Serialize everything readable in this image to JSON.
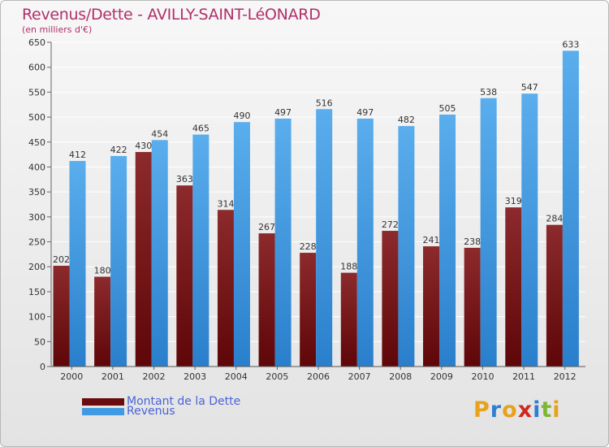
{
  "title": "Revenus/Dette - AVILLY-SAINT-LéONARD",
  "subtitle": "(en milliers d'€)",
  "legend": {
    "items": [
      {
        "label": "Montant de la Dette",
        "color": "#7a1416"
      },
      {
        "label": "Revenus",
        "color": "#3f9ae3"
      }
    ]
  },
  "logo": {
    "letters": [
      "P",
      "r",
      "o",
      "x",
      "i",
      "t",
      "i"
    ],
    "colors": [
      "#e8a21a",
      "#2f7fd0",
      "#e8a21a",
      "#d0271d",
      "#2f7fd0",
      "#7db832",
      "#e8a21a"
    ]
  },
  "chart_data": {
    "type": "bar",
    "categories": [
      "2000",
      "2001",
      "2002",
      "2003",
      "2004",
      "2005",
      "2006",
      "2007",
      "2008",
      "2009",
      "2010",
      "2011",
      "2012"
    ],
    "series": [
      {
        "name": "Montant de la Dette",
        "color": "#7a1416",
        "values": [
          202,
          180,
          430,
          363,
          314,
          267,
          228,
          188,
          272,
          241,
          238,
          319,
          284
        ]
      },
      {
        "name": "Revenus",
        "color": "#3f9ae3",
        "values": [
          412,
          422,
          454,
          465,
          490,
          497,
          516,
          497,
          482,
          505,
          538,
          547,
          633
        ]
      }
    ],
    "ylim": [
      0,
      650
    ],
    "yticks": [
      0,
      50,
      100,
      150,
      200,
      250,
      300,
      350,
      400,
      450,
      500,
      550,
      600,
      650
    ],
    "grid": true,
    "title": "Revenus/Dette - AVILLY-SAINT-LéONARD",
    "ylabel": "(en milliers d'€)",
    "xlabel": ""
  }
}
